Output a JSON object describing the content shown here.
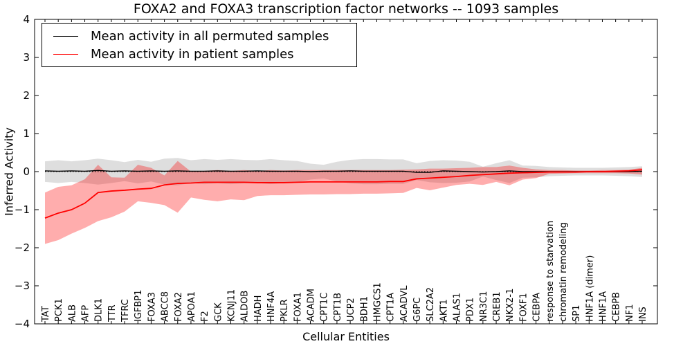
{
  "title": "FOXA2 and FOXA3 transcription factor networks -- 1093 samples",
  "legend": {
    "position": "upper left",
    "items": [
      {
        "label": "Mean activity in all permuted samples",
        "color": "#000000"
      },
      {
        "label": "Mean activity in patient samples",
        "color": "#ff0000"
      }
    ]
  },
  "colors": {
    "permuted_line": "#000000",
    "permuted_band": "#000000",
    "patient_line": "#ff0000",
    "patient_band": "#ff0000",
    "background": "#ffffff",
    "axis": "#000000"
  },
  "chart_data": {
    "type": "line",
    "title": "FOXA2 and FOXA3 transcription factor networks -- 1093 samples",
    "xlabel": "Cellular Entities",
    "ylabel": "Inferred Activity",
    "ylim": [
      -4,
      4
    ],
    "yticks": [
      -4,
      -3,
      -2,
      -1,
      0,
      1,
      2,
      3,
      4
    ],
    "grid": false,
    "legend_position": "upper left",
    "zero_line": {
      "style": "dotted",
      "value": 0
    },
    "categories": [
      "TAT",
      "PCK1",
      "ALB",
      "AFP",
      "DLK1",
      "TTR",
      "TFRC",
      "IGFBP1",
      "FOXA3",
      "ABCC8",
      "FOXA2",
      "APOA1",
      "F2",
      "GCK",
      "KCNJ11",
      "ALDOB",
      "HADH",
      "HNF4A",
      "PKLR",
      "FOXA1",
      "ACADM",
      "CPT1C",
      "CPT1B",
      "UCP2",
      "BDH1",
      "HMGCS1",
      "CPT1A",
      "ACADVL",
      "G6PC",
      "SLC2A2",
      "AKT1",
      "ALAS1",
      "PDX1",
      "NR3C1",
      "CREB1",
      "NKX2-1",
      "FOXF1",
      "CEBPA",
      "response to starvation",
      "chromatin remodeling",
      "SP1",
      "HNF1A (dimer)",
      "HNF1A",
      "CEBPB",
      "NF1",
      "INS"
    ],
    "series": [
      {
        "name": "Mean activity in all permuted samples",
        "color": "#000000",
        "line_width": 1.4,
        "band_opacity": 0.13,
        "values": [
          0.02,
          0.01,
          0.02,
          0.01,
          0.03,
          0.01,
          0.02,
          0.01,
          0.02,
          0.01,
          0.02,
          0.01,
          0.01,
          0.02,
          0.01,
          0.01,
          0.02,
          0.01,
          0.01,
          0.01,
          0.0,
          0.01,
          0.01,
          0.02,
          0.01,
          0.01,
          0.01,
          0.01,
          -0.02,
          -0.02,
          0.02,
          0.01,
          0.0,
          -0.01,
          0.0,
          0.02,
          0.0,
          0.0,
          0.0,
          0.0,
          0.0,
          0.0,
          0.0,
          0.0,
          0.0,
          0.01
        ],
        "band_upper": [
          0.27,
          0.3,
          0.27,
          0.3,
          0.34,
          0.3,
          0.25,
          0.31,
          0.26,
          0.34,
          0.36,
          0.3,
          0.33,
          0.31,
          0.33,
          0.31,
          0.3,
          0.33,
          0.3,
          0.28,
          0.21,
          0.18,
          0.26,
          0.31,
          0.33,
          0.33,
          0.32,
          0.32,
          0.22,
          0.28,
          0.3,
          0.29,
          0.26,
          0.13,
          0.22,
          0.3,
          0.16,
          0.15,
          0.12,
          0.11,
          0.1,
          0.1,
          0.1,
          0.11,
          0.12,
          0.14
        ],
        "band_lower": [
          -0.27,
          -0.3,
          -0.27,
          -0.3,
          -0.34,
          -0.3,
          -0.25,
          -0.31,
          -0.26,
          -0.34,
          -0.36,
          -0.3,
          -0.33,
          -0.31,
          -0.33,
          -0.31,
          -0.3,
          -0.33,
          -0.3,
          -0.28,
          -0.21,
          -0.18,
          -0.26,
          -0.31,
          -0.33,
          -0.33,
          -0.32,
          -0.32,
          -0.22,
          -0.28,
          -0.3,
          -0.29,
          -0.26,
          -0.13,
          -0.22,
          -0.3,
          -0.16,
          -0.15,
          -0.12,
          -0.11,
          -0.1,
          -0.1,
          -0.1,
          -0.11,
          -0.12,
          -0.14
        ]
      },
      {
        "name": "Mean activity in patient samples",
        "color": "#ff0000",
        "line_width": 1.8,
        "band_opacity": 0.32,
        "values": [
          -1.22,
          -1.09,
          -1.0,
          -0.83,
          -0.55,
          -0.51,
          -0.49,
          -0.46,
          -0.44,
          -0.35,
          -0.31,
          -0.3,
          -0.28,
          -0.28,
          -0.28,
          -0.28,
          -0.29,
          -0.29,
          -0.29,
          -0.28,
          -0.27,
          -0.27,
          -0.27,
          -0.27,
          -0.27,
          -0.27,
          -0.26,
          -0.26,
          -0.19,
          -0.17,
          -0.15,
          -0.13,
          -0.1,
          -0.08,
          -0.06,
          -0.04,
          -0.03,
          -0.02,
          -0.01,
          -0.01,
          -0.01,
          0.0,
          0.0,
          0.01,
          0.02,
          0.05
        ],
        "band_upper": [
          -0.55,
          -0.4,
          -0.36,
          -0.2,
          0.18,
          -0.15,
          -0.16,
          0.18,
          0.1,
          -0.1,
          0.28,
          0.0,
          0.02,
          0.04,
          0.02,
          0.04,
          0.02,
          0.04,
          0.03,
          0.04,
          0.04,
          0.04,
          0.04,
          0.04,
          0.04,
          0.04,
          0.04,
          0.05,
          0.06,
          0.08,
          0.08,
          0.09,
          0.1,
          0.12,
          0.12,
          0.16,
          0.1,
          0.06,
          0.04,
          0.04,
          0.03,
          0.03,
          0.04,
          0.04,
          0.05,
          0.1
        ],
        "band_lower": [
          -1.9,
          -1.8,
          -1.63,
          -1.48,
          -1.3,
          -1.2,
          -1.05,
          -0.78,
          -0.82,
          -0.88,
          -1.08,
          -0.68,
          -0.74,
          -0.78,
          -0.73,
          -0.75,
          -0.64,
          -0.62,
          -0.62,
          -0.61,
          -0.6,
          -0.6,
          -0.59,
          -0.59,
          -0.58,
          -0.58,
          -0.57,
          -0.56,
          -0.43,
          -0.49,
          -0.42,
          -0.35,
          -0.32,
          -0.35,
          -0.27,
          -0.36,
          -0.21,
          -0.17,
          -0.06,
          -0.05,
          -0.04,
          -0.04,
          -0.04,
          -0.04,
          -0.05,
          -0.08
        ]
      }
    ]
  }
}
